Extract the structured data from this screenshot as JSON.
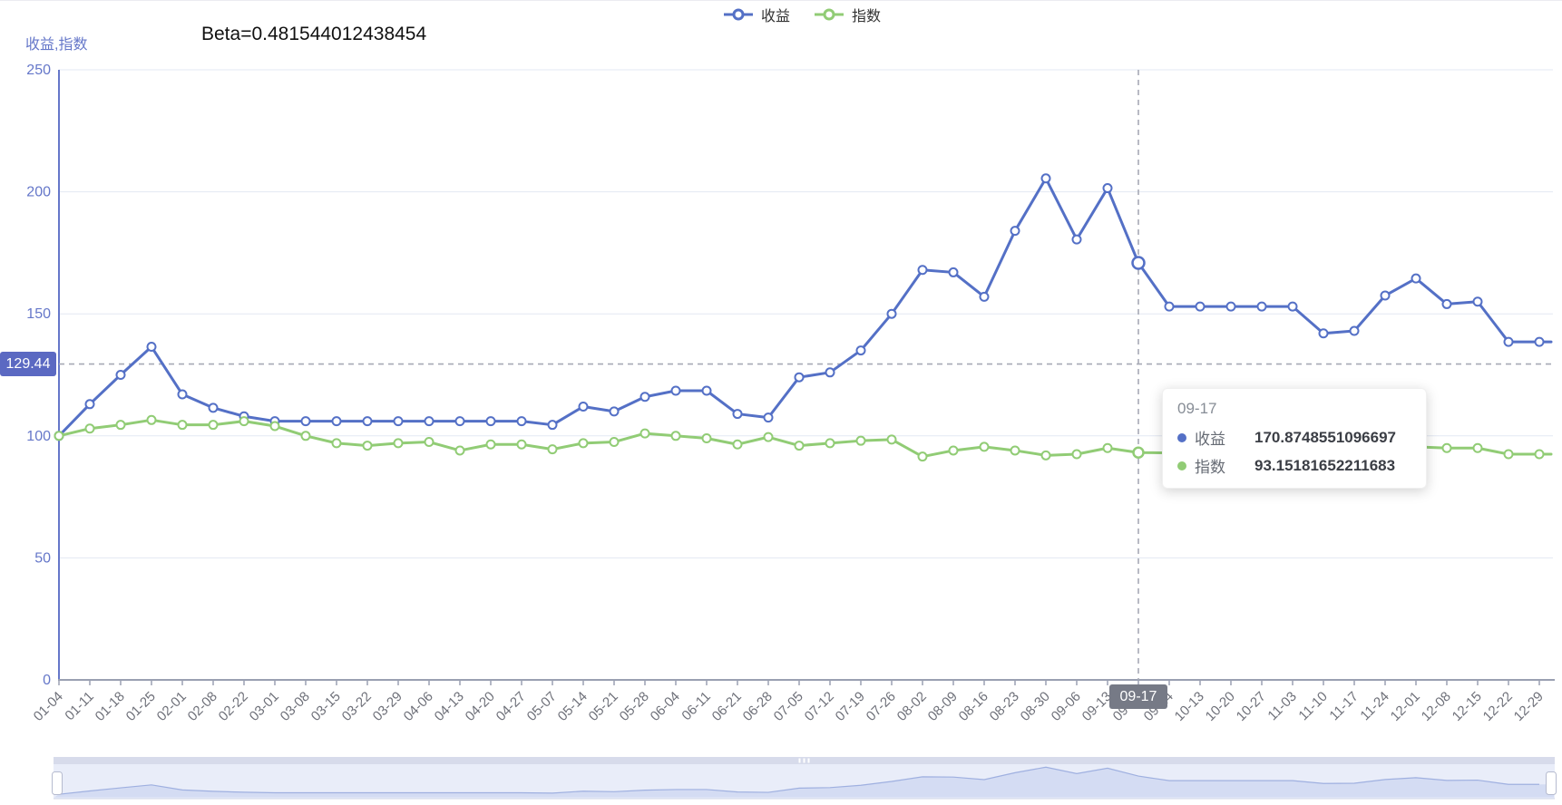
{
  "annotation": {
    "beta_label": "Beta=0.481544012438454"
  },
  "y_axis": {
    "name": "收益,指数",
    "pointer_label": "129.44"
  },
  "x_axis": {
    "pointer_label": "09-17"
  },
  "legend": {
    "items": [
      {
        "label": "收益",
        "color": "#5470c6"
      },
      {
        "label": "指数",
        "color": "#91cc75"
      }
    ]
  },
  "tooltip": {
    "title": "09-17",
    "rows": [
      {
        "label": "收益",
        "value": "170.8748551096697",
        "color": "#5470c6"
      },
      {
        "label": "指数",
        "value": "93.15181652211683",
        "color": "#91cc75"
      }
    ]
  },
  "colors": {
    "series_shouyi": "#5470c6",
    "series_zhishu": "#91cc75",
    "y_axis": "#6577c9",
    "x_axis_line": "#9aa0b2",
    "x_label": "#6E7079",
    "grid_line": "#e3e8f3",
    "crosshair": "#a6a9b5",
    "y_pointer_bg": "#5b69c2",
    "x_pointer_bg": "#767a86",
    "zoom_track": "#e9edf9",
    "zoom_bar": "#d7dbeb",
    "zoom_shadow_fill": "#ccd5f0",
    "zoom_shadow_line": "#9fb0e0",
    "zoom_handle_border": "#b6bbcf"
  },
  "data_zoom": {
    "start_percent": 0,
    "end_percent": 100
  },
  "chart_data": {
    "type": "line",
    "title": "Beta=0.481544012438454",
    "xlabel": "",
    "ylabel": "收益,指数",
    "ylim": [
      0,
      250
    ],
    "y_ticks": [
      0,
      50,
      100,
      150,
      200,
      250
    ],
    "grid": true,
    "legend_position": "top-center",
    "x_label_rotation": 45,
    "categories": [
      "01-04",
      "01-11",
      "01-18",
      "01-25",
      "02-01",
      "02-08",
      "02-22",
      "03-01",
      "03-08",
      "03-15",
      "03-22",
      "03-29",
      "04-06",
      "04-13",
      "04-20",
      "04-27",
      "05-07",
      "05-14",
      "05-21",
      "05-28",
      "06-04",
      "06-11",
      "06-21",
      "06-28",
      "07-05",
      "07-12",
      "07-19",
      "07-26",
      "08-02",
      "08-09",
      "08-16",
      "08-23",
      "08-30",
      "09-06",
      "09-13",
      "09-17",
      "09-24",
      "10-13",
      "10-20",
      "10-27",
      "11-03",
      "11-10",
      "11-17",
      "11-24",
      "12-01",
      "12-08",
      "12-15",
      "12-22",
      "12-29"
    ],
    "series": [
      {
        "name": "收益",
        "color": "#5470c6",
        "values": [
          100,
          113,
          125,
          136.5,
          117,
          111.5,
          108,
          106,
          106,
          106,
          106,
          106,
          106,
          106,
          106,
          106,
          104.5,
          112,
          110,
          116,
          118.5,
          118.5,
          109,
          107.5,
          124,
          126,
          135,
          150,
          168,
          167,
          157,
          184,
          205.5,
          180.5,
          201.5,
          170.8748551096697,
          153,
          153,
          153,
          153,
          153,
          142,
          143,
          157.5,
          164.5,
          154,
          155,
          138.5,
          138.5
        ]
      },
      {
        "name": "指数",
        "color": "#91cc75",
        "values": [
          100,
          103,
          104.5,
          106.5,
          104.5,
          104.5,
          106,
          104,
          100,
          97,
          96,
          97,
          97.5,
          94,
          96.5,
          96.5,
          94.5,
          97,
          97.5,
          101,
          100,
          99,
          96.5,
          99.5,
          96,
          97,
          98,
          98.5,
          91.5,
          94,
          95.5,
          94,
          92,
          92.5,
          95,
          93.15181652211683,
          93,
          94.5,
          93.5,
          95,
          93.5,
          96,
          94,
          96.5,
          95.5,
          95,
          95,
          92.5,
          92.5
        ]
      }
    ],
    "hover": {
      "category": "09-17",
      "index": 35,
      "values": [
        "170.8748551096697",
        "93.15181652211683"
      ],
      "y_axis_pointer": "129.44"
    }
  }
}
